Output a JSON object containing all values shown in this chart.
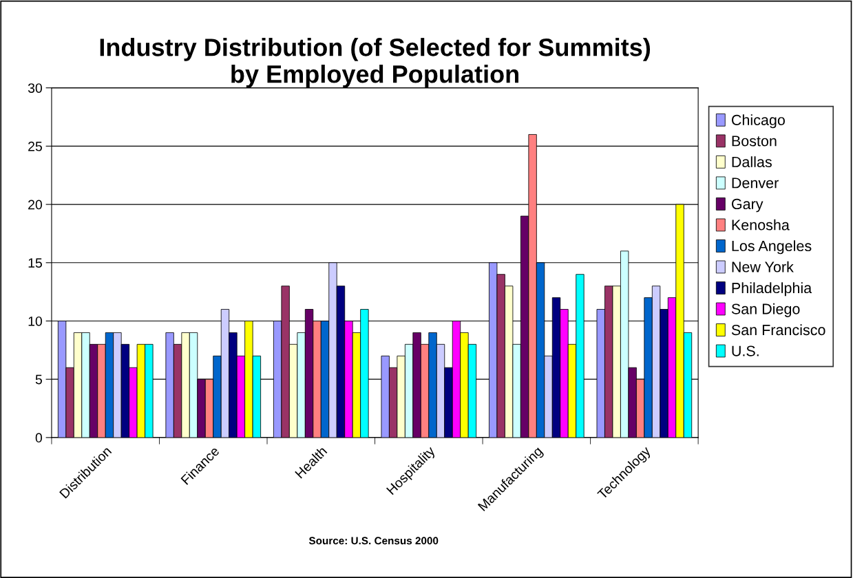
{
  "chart_data": {
    "type": "bar",
    "title": "Industry Distribution (of Selected for Summits)\nby Employed Population",
    "categories": [
      "Distribution",
      "Finance",
      "Health",
      "Hospitality",
      "Manufacturing",
      "Technology"
    ],
    "series": [
      {
        "name": "Chicago",
        "color": "#9999ff",
        "values": [
          10,
          9,
          10,
          7,
          15,
          11
        ]
      },
      {
        "name": "Boston",
        "color": "#993366",
        "values": [
          6,
          8,
          13,
          6,
          14,
          13
        ]
      },
      {
        "name": "Dallas",
        "color": "#ffffcc",
        "values": [
          9,
          9,
          8,
          7,
          13,
          13
        ]
      },
      {
        "name": "Denver",
        "color": "#ccffff",
        "values": [
          9,
          9,
          9,
          8,
          8,
          16
        ]
      },
      {
        "name": "Gary",
        "color": "#660066",
        "values": [
          8,
          5,
          11,
          9,
          19,
          6
        ]
      },
      {
        "name": "Kenosha",
        "color": "#ff8080",
        "values": [
          8,
          5,
          10,
          8,
          26,
          5
        ]
      },
      {
        "name": "Los Angeles",
        "color": "#0066cc",
        "values": [
          9,
          7,
          10,
          9,
          15,
          12
        ]
      },
      {
        "name": "New York",
        "color": "#ccccff",
        "values": [
          9,
          11,
          15,
          8,
          7,
          13
        ]
      },
      {
        "name": "Philadelphia",
        "color": "#000080",
        "values": [
          8,
          9,
          13,
          6,
          12,
          11
        ]
      },
      {
        "name": "San Diego",
        "color": "#ff00ff",
        "values": [
          6,
          7,
          10,
          10,
          11,
          12
        ]
      },
      {
        "name": "San Francisco",
        "color": "#ffff00",
        "values": [
          8,
          10,
          9,
          9,
          8,
          20
        ]
      },
      {
        "name": "U.S.",
        "color": "#00ffff",
        "values": [
          8,
          7,
          11,
          8,
          14,
          9
        ]
      }
    ],
    "ylim": [
      0,
      30
    ],
    "yticks": [
      0,
      5,
      10,
      15,
      20,
      25,
      30
    ],
    "grid": "y",
    "legend": "right",
    "annotations": [
      "Source: U.S. Census 2000"
    ]
  }
}
